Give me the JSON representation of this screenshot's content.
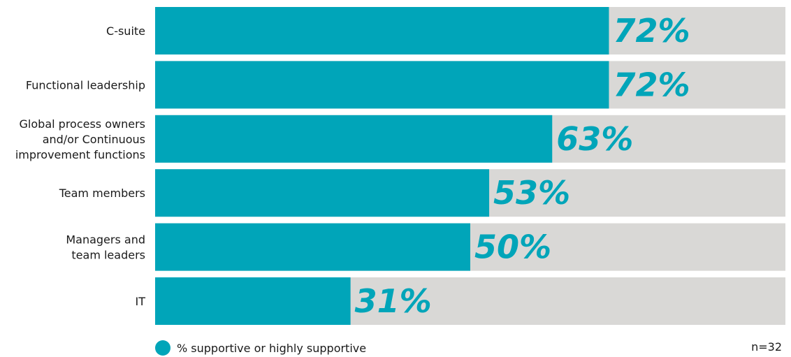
{
  "chart_data": {
    "type": "bar",
    "orientation": "horizontal",
    "categories": [
      "C-suite",
      "Functional leadership",
      "Global process owners and/or Continuous improvement functions",
      "Team members",
      "Managers and team leaders",
      "IT"
    ],
    "category_lines": [
      [
        "C-suite"
      ],
      [
        "Functional leadership"
      ],
      [
        "Global process owners",
        "and/or Continuous",
        "improvement functions"
      ],
      [
        "Team members"
      ],
      [
        "Managers and",
        "team leaders"
      ],
      [
        "IT"
      ]
    ],
    "series": [
      {
        "name": "% supportive or highly supportive",
        "values": [
          72,
          72,
          63,
          53,
          50,
          31
        ]
      }
    ],
    "value_labels": [
      "72%",
      "72%",
      "63%",
      "53%",
      "50%",
      "31%"
    ],
    "xlim": [
      0,
      100
    ],
    "grid": false,
    "legend_position": "bottom-left",
    "colors": {
      "bar": "#00a5b9",
      "track": "#d9d8d6",
      "label": "#00a5b9"
    }
  },
  "legend": {
    "label": "% supportive or highly supportive"
  },
  "sample_size": "n=32"
}
